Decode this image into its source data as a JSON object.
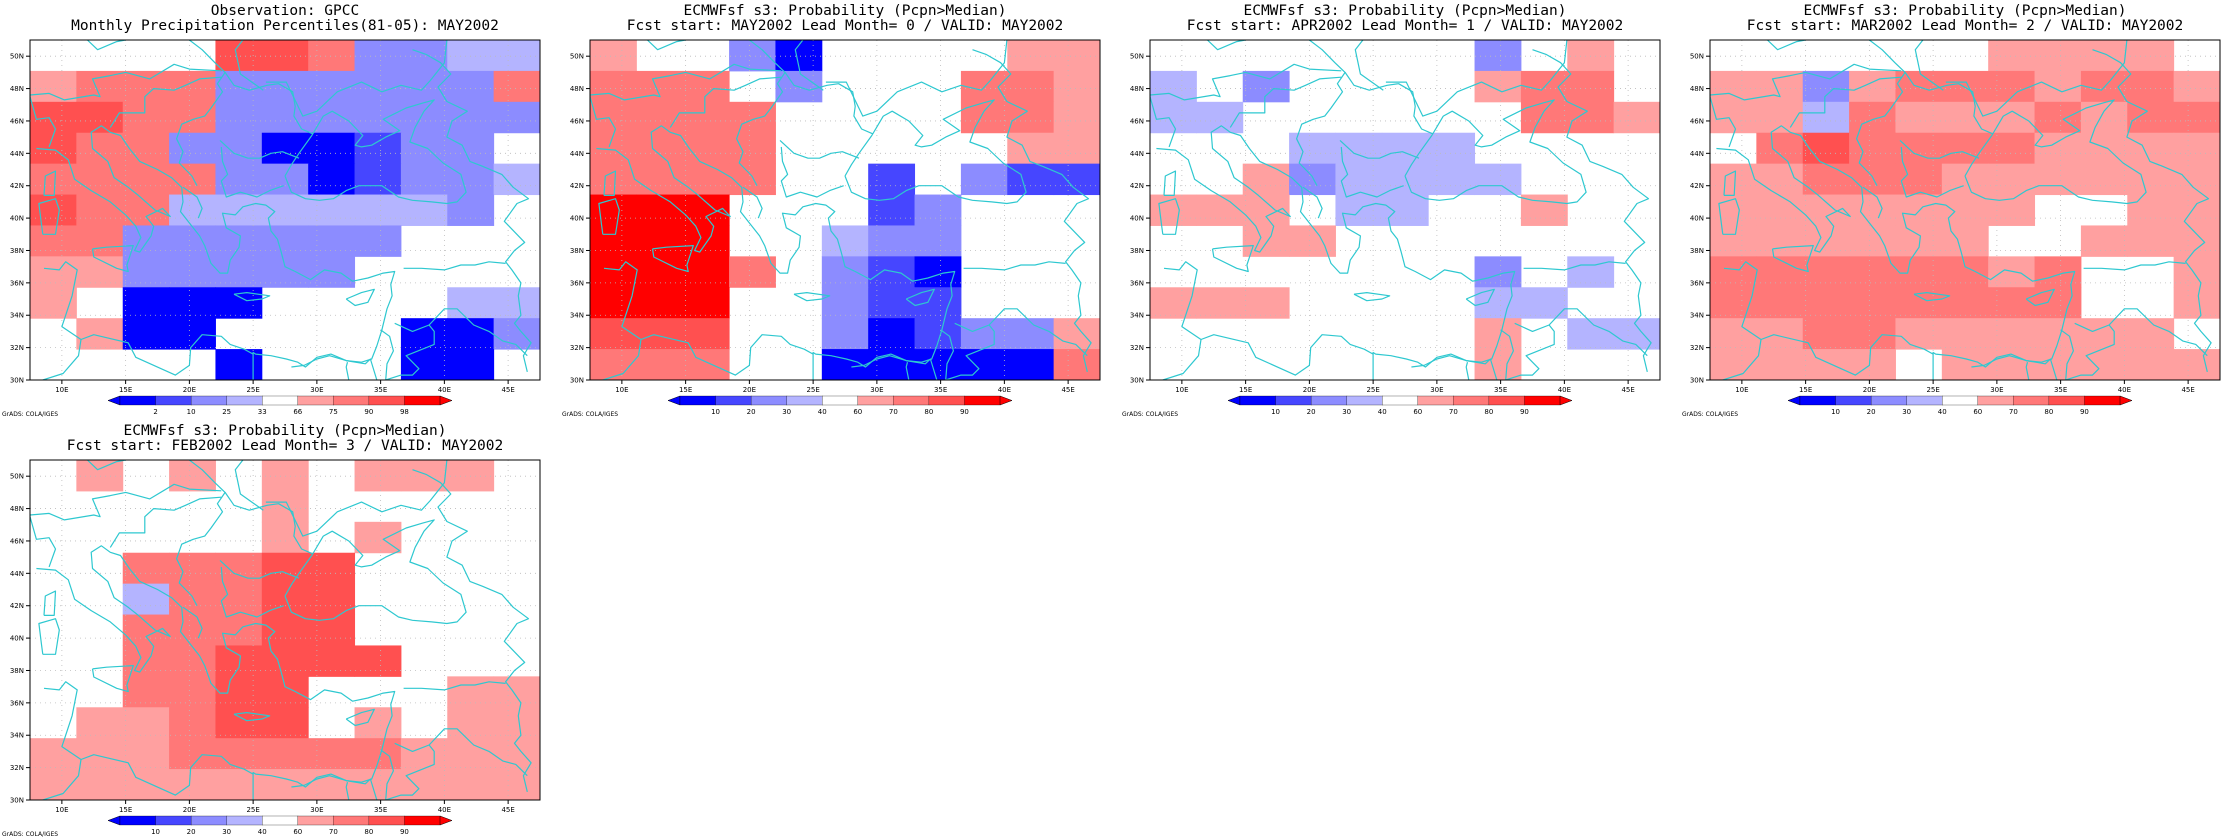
{
  "credit": "GrADS: COLA/IGES",
  "colors": {
    "palette": [
      "#0000ff",
      "#4646ff",
      "#8c8cff",
      "#b4b4ff",
      "#ffffff",
      "#ffa0a0",
      "#ff7878",
      "#ff5050",
      "#ff0000"
    ],
    "coast": "#2ec8d0",
    "grid": "#bbbbbb"
  },
  "chart_data": [
    {
      "type": "heatmap",
      "title": [
        "Observation: GPCC",
        "Monthly Precipitation Percentiles(81-05): MAY2002"
      ],
      "x_ticks": [
        "10E",
        "15E",
        "20E",
        "25E",
        "30E",
        "35E",
        "40E",
        "45E"
      ],
      "y_ticks": [
        "30N",
        "32N",
        "34N",
        "36N",
        "38N",
        "40N",
        "42N",
        "44N",
        "46N",
        "48N",
        "50N"
      ],
      "xlim": [
        7.5,
        47.5
      ],
      "ylim": [
        30,
        51
      ],
      "colorbar": [
        "2",
        "10",
        "25",
        "33",
        "66",
        "75",
        "90",
        "98"
      ],
      "grid": [
        "44447762233",
        "56662222226",
        "77662222222",
        "76622001224",
        "66662201223",
        "76633333324",
        "66222222444",
        "55222224444",
        "54000444433",
        "45004444002",
        "44440444004"
      ]
    },
    {
      "type": "heatmap",
      "title": [
        "ECMWFsf s3: Probability (Pcpn>Median)",
        "Fcst start: MAY2002  Lead Month= 0 / VALID: MAY2002"
      ],
      "x_ticks": [
        "10E",
        "15E",
        "20E",
        "25E",
        "30E",
        "35E",
        "40E",
        "45E"
      ],
      "y_ticks": [
        "30N",
        "32N",
        "34N",
        "36N",
        "38N",
        "40N",
        "42N",
        "44N",
        "46N",
        "48N",
        "50N"
      ],
      "xlim": [
        7.5,
        47.5
      ],
      "ylim": [
        30,
        51
      ],
      "colorbar": [
        "10",
        "20",
        "30",
        "40",
        "60",
        "70",
        "80",
        "90"
      ],
      "grid": [
        "54420444455",
        "66642444665",
        "66664444665",
        "66664444455",
        "66664414211",
        "88844412444",
        "88844322444",
        "88864210444",
        "88844211444",
        "77744201225",
        "66644000006"
      ]
    },
    {
      "type": "heatmap",
      "title": [
        "ECMWFsf s3: Probability (Pcpn>Median)",
        "Fcst start: APR2002  Lead Month= 1 / VALID: MAY2002"
      ],
      "x_ticks": [
        "10E",
        "15E",
        "20E",
        "25E",
        "30E",
        "35E",
        "40E",
        "45E"
      ],
      "y_ticks": [
        "30N",
        "32N",
        "34N",
        "36N",
        "38N",
        "40N",
        "42N",
        "44N",
        "46N",
        "48N",
        "50N"
      ],
      "xlim": [
        7.5,
        47.5
      ],
      "ylim": [
        30,
        51
      ],
      "colorbar": [
        "10",
        "20",
        "30",
        "40",
        "60",
        "70",
        "80",
        "90"
      ],
      "grid": [
        "44444442454",
        "34244445664",
        "33444444665",
        "44433334444",
        "44523333444",
        "55543344544",
        "44554444444",
        "44444442434",
        "55544443344",
        "44444445433",
        "44444445444"
      ]
    },
    {
      "type": "heatmap",
      "title": [
        "ECMWFsf s3: Probability (Pcpn>Median)",
        "Fcst start: MAR2002  Lead Month= 2 / VALID: MAY2002"
      ],
      "x_ticks": [
        "10E",
        "15E",
        "20E",
        "25E",
        "30E",
        "35E",
        "40E",
        "45E"
      ],
      "y_ticks": [
        "30N",
        "32N",
        "34N",
        "36N",
        "38N",
        "40N",
        "42N",
        "44N",
        "46N",
        "48N",
        "50N"
      ],
      "xlim": [
        7.5,
        47.5
      ],
      "ylim": [
        30,
        51
      ],
      "colorbar": [
        "10",
        "20",
        "30",
        "40",
        "60",
        "70",
        "80",
        "90"
      ],
      "grid": [
        "44444455554",
        "55256665665",
        "55365556566",
        "46766665555",
        "55666555555",
        "55555554455",
        "55555544555",
        "66666656445",
        "66666666445",
        "55665555554",
        "55554555555"
      ]
    },
    {
      "type": "heatmap",
      "title": [
        "ECMWFsf s3: Probability (Pcpn>Median)",
        "Fcst start: FEB2002  Lead Month= 3 / VALID: MAY2002"
      ],
      "x_ticks": [
        "10E",
        "15E",
        "20E",
        "25E",
        "30E",
        "35E",
        "40E",
        "45E"
      ],
      "y_ticks": [
        "30N",
        "32N",
        "34N",
        "36N",
        "38N",
        "40N",
        "42N",
        "44N",
        "46N",
        "48N",
        "50N"
      ],
      "xlim": [
        7.5,
        47.5
      ],
      "ylim": [
        30,
        51
      ],
      "colorbar": [
        "10",
        "20",
        "30",
        "40",
        "60",
        "70",
        "80",
        "90"
      ],
      "grid": [
        "45454545554",
        "44444544444",
        "44444545444",
        "44666774444",
        "44366774444",
        "44666774444",
        "44667777444",
        "44667744455",
        "45567745455",
        "55566666555",
        "55555555555"
      ]
    }
  ]
}
